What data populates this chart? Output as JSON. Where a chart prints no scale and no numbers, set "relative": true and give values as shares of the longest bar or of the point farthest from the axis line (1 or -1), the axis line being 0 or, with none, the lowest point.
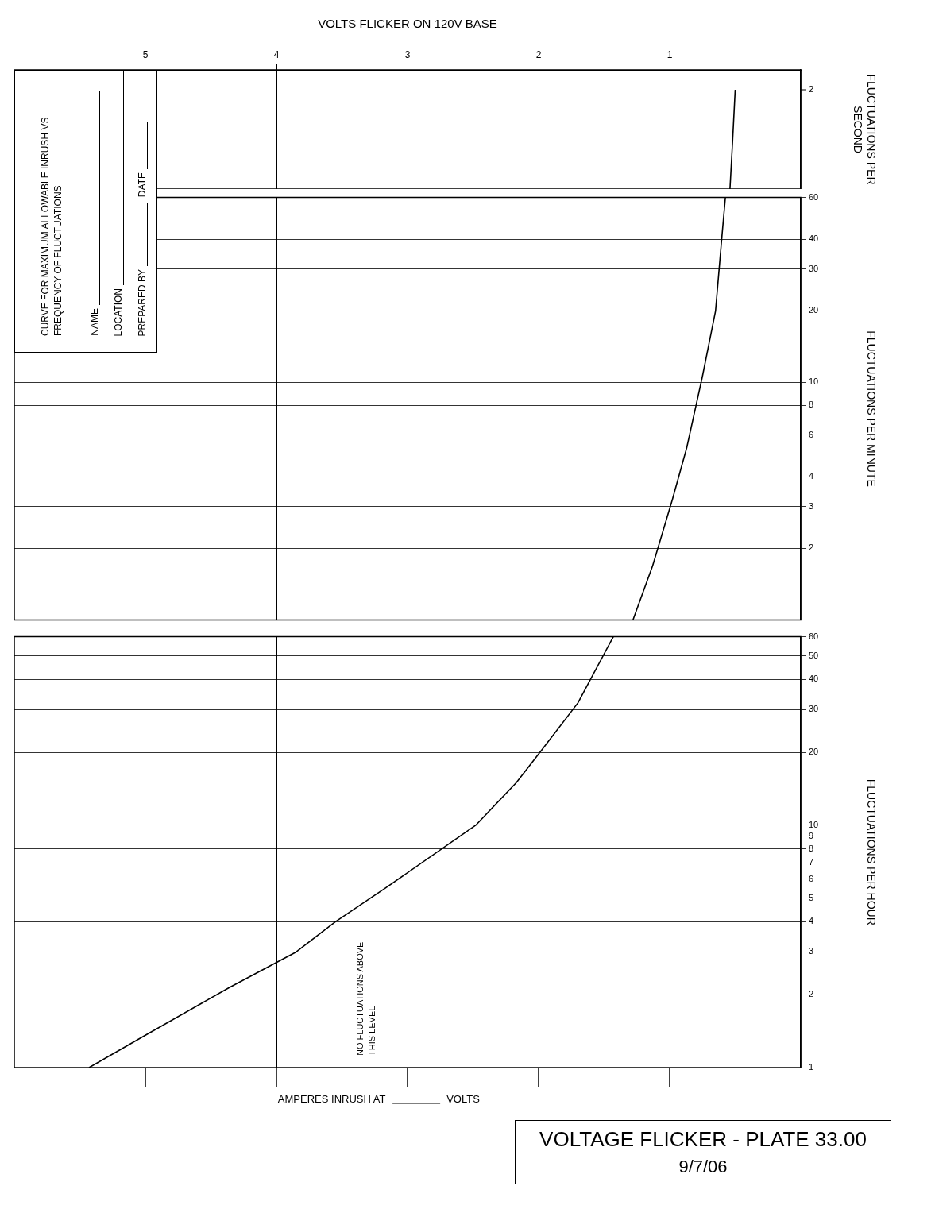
{
  "chart_data": [
    {
      "type": "line",
      "xlabel": "VOLTS FLICKER ON 120V BASE",
      "ylabel": "FLUCTUATIONS PER SECOND",
      "series": [
        {
          "color": "#000000",
          "x": [
            0.54,
            0.52,
            0.5
          ],
          "values": [
            0,
            0.48,
            1
          ]
        }
      ],
      "relative": true,
      "xlim": [
        6,
        0
      ],
      "xticks": [
        5,
        4,
        3,
        2,
        1
      ],
      "grid": "x",
      "annotations": [
        "CURVE FOR MAXIMUM ALLOWABLE INRUSH VS FREQUENCY OF FLUCTUATIONS",
        "NAME",
        "LOCATION",
        "PREPARED BY",
        "DATE",
        "2"
      ]
    },
    {
      "type": "line",
      "ylabel": "FLUCTUATIONS PER MINUTE",
      "series": [
        {
          "color": "#000000",
          "x": [
            1.28,
            1.13,
            0.98,
            0.87,
            0.75,
            0.65,
            0.6,
            0.575
          ],
          "values": [
            1,
            1.69,
            3.2,
            5.3,
            10.6,
            20,
            42,
            60
          ]
        }
      ],
      "xlim": [
        6,
        0
      ],
      "xticks": [
        5,
        4,
        3,
        2,
        1
      ],
      "ylim": [
        1,
        60
      ],
      "yticks": [
        2,
        3,
        4,
        6,
        8,
        10,
        20,
        30,
        40,
        60
      ],
      "log": "y",
      "grid": true,
      "tick_labels": "y"
    },
    {
      "type": "line",
      "title": "VOLTAGE FLICKER - PLATE 33.00",
      "subtitle": "9/7/06",
      "ylabel": "FLUCTUATIONS PER HOUR",
      "series": [
        {
          "color": "#000000",
          "x": [
            5.43,
            5.0,
            4.36,
            3.85,
            3.55,
            3.17,
            2.48,
            2.17,
            1.96,
            1.7,
            1.43
          ],
          "values": [
            1,
            1.36,
            2.14,
            3.0,
            4.0,
            5.5,
            10,
            15,
            21,
            32,
            60
          ]
        }
      ],
      "xlim": [
        6,
        0
      ],
      "xticks": [
        5,
        4,
        3,
        2,
        1
      ],
      "ylim": [
        1,
        60
      ],
      "yticks": [
        1,
        2,
        3,
        4,
        5,
        6,
        7,
        8,
        9,
        10,
        20,
        30,
        40,
        50,
        60
      ],
      "log": "y",
      "grid": true,
      "tick_labels": "y",
      "annotations": [
        "AMPERES INRUSH AT",
        "VOLTS",
        "NO FLUCTUATIONS ABOVE THIS LEVEL"
      ]
    }
  ]
}
